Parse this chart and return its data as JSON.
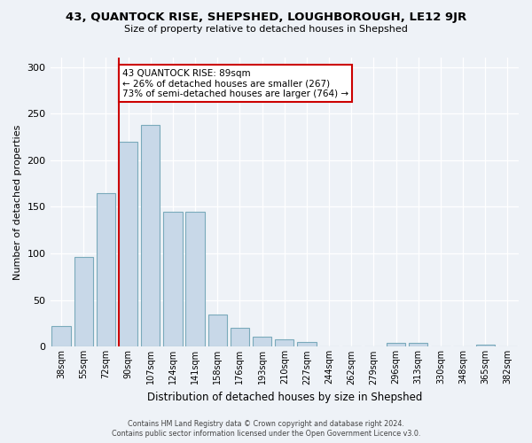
{
  "title": "43, QUANTOCK RISE, SHEPSHED, LOUGHBOROUGH, LE12 9JR",
  "subtitle": "Size of property relative to detached houses in Shepshed",
  "xlabel": "Distribution of detached houses by size in Shepshed",
  "ylabel": "Number of detached properties",
  "bar_labels": [
    "38sqm",
    "55sqm",
    "72sqm",
    "90sqm",
    "107sqm",
    "124sqm",
    "141sqm",
    "158sqm",
    "176sqm",
    "193sqm",
    "210sqm",
    "227sqm",
    "244sqm",
    "262sqm",
    "279sqm",
    "296sqm",
    "313sqm",
    "330sqm",
    "348sqm",
    "365sqm",
    "382sqm"
  ],
  "bar_values": [
    22,
    96,
    165,
    220,
    238,
    145,
    145,
    35,
    20,
    11,
    8,
    5,
    0,
    0,
    0,
    4,
    4,
    0,
    0,
    2,
    0
  ],
  "bar_color": "#c8d8e8",
  "bar_edge_color": "#7aaabb",
  "vline_x": 3,
  "vline_color": "#cc0000",
  "annotation_text": "43 QUANTOCK RISE: 89sqm\n← 26% of detached houses are smaller (267)\n73% of semi-detached houses are larger (764) →",
  "annotation_box_color": "#ffffff",
  "annotation_box_edge": "#cc0000",
  "bg_color": "#eef2f7",
  "plot_bg_color": "#eef2f7",
  "grid_color": "#ffffff",
  "ylim": [
    0,
    310
  ],
  "yticks": [
    0,
    50,
    100,
    150,
    200,
    250,
    300
  ],
  "footer_line1": "Contains HM Land Registry data © Crown copyright and database right 2024.",
  "footer_line2": "Contains public sector information licensed under the Open Government Licence v3.0."
}
